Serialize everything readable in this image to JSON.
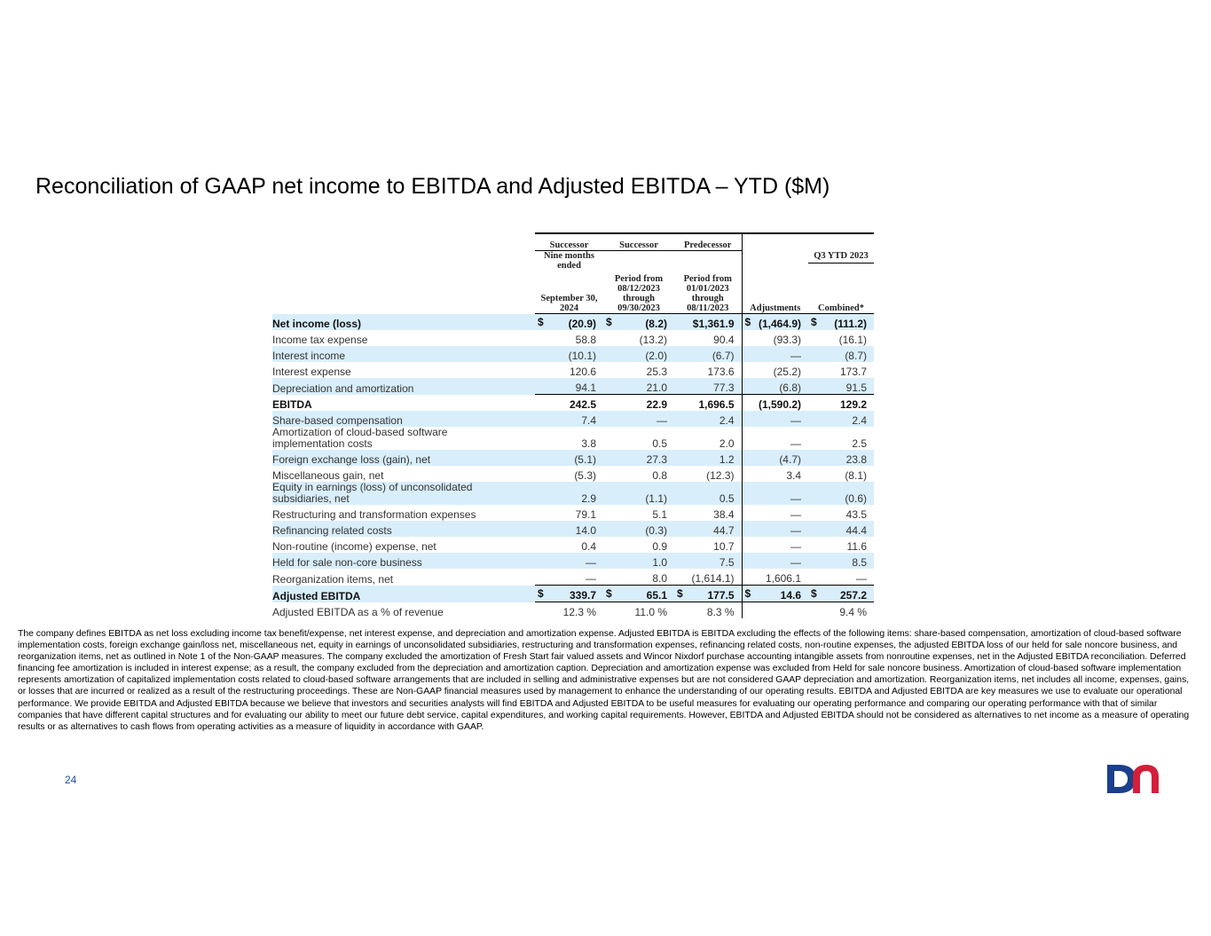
{
  "title": "Reconciliation of GAAP net income to EBITDA and Adjusted EBITDA – YTD ($M)",
  "table": {
    "groups": [
      "Successor",
      "Successor",
      "Predecessor"
    ],
    "columns": [
      [
        "Nine months ended",
        "September 30, 2024"
      ],
      [
        "Period from 08/12/2023 through 09/30/2023"
      ],
      [
        "Period from 01/01/2023 through 08/11/2023"
      ],
      [
        "Adjustments"
      ],
      [
        "Q3 YTD 2023",
        "Combined*"
      ]
    ],
    "rows": [
      {
        "label": "Net income (loss)",
        "bold": true,
        "shaded": true,
        "dollars": [
          "$",
          "$",
          null,
          "$",
          "$"
        ],
        "values": [
          "(20.9)",
          "(8.2)",
          "$1,361.9",
          "(1,464.9)",
          "(111.2)"
        ]
      },
      {
        "label": "Income tax expense",
        "bold": false,
        "shaded": false,
        "values": [
          "58.8",
          "(13.2)",
          "90.4",
          "(93.3)",
          "(16.1)"
        ]
      },
      {
        "label": "Interest income",
        "bold": false,
        "shaded": true,
        "values": [
          "(10.1)",
          "(2.0)",
          "(6.7)",
          "—",
          "(8.7)"
        ]
      },
      {
        "label": "Interest expense",
        "bold": false,
        "shaded": false,
        "values": [
          "120.6",
          "25.3",
          "173.6",
          "(25.2)",
          "173.7"
        ]
      },
      {
        "label": "Depreciation and amortization",
        "bold": false,
        "shaded": true,
        "values": [
          "94.1",
          "21.0",
          "77.3",
          "(6.8)",
          "91.5"
        ]
      },
      {
        "label": "EBITDA",
        "bold": true,
        "shaded": false,
        "values": [
          "242.5",
          "22.9",
          "1,696.5",
          "(1,590.2)",
          "129.2"
        ]
      },
      {
        "label": "Share-based compensation",
        "bold": false,
        "shaded": true,
        "values": [
          "7.4",
          "—",
          "2.4",
          "—",
          "2.4"
        ]
      },
      {
        "label": "Amortization of cloud-based software implementation costs",
        "bold": false,
        "shaded": false,
        "values": [
          "3.8",
          "0.5",
          "2.0",
          "—",
          "2.5"
        ]
      },
      {
        "label": "Foreign exchange loss (gain), net",
        "bold": false,
        "shaded": true,
        "values": [
          "(5.1)",
          "27.3",
          "1.2",
          "(4.7)",
          "23.8"
        ]
      },
      {
        "label": "Miscellaneous gain, net",
        "bold": false,
        "shaded": false,
        "values": [
          "(5.3)",
          "0.8",
          "(12.3)",
          "3.4",
          "(8.1)"
        ]
      },
      {
        "label": "Equity in earnings (loss) of unconsolidated subsidiaries, net",
        "bold": false,
        "shaded": true,
        "values": [
          "2.9",
          "(1.1)",
          "0.5",
          "—",
          "(0.6)"
        ]
      },
      {
        "label": "Restructuring and transformation expenses",
        "bold": false,
        "shaded": false,
        "values": [
          "79.1",
          "5.1",
          "38.4",
          "—",
          "43.5"
        ]
      },
      {
        "label": "Refinancing related costs",
        "bold": false,
        "shaded": true,
        "values": [
          "14.0",
          "(0.3)",
          "44.7",
          "—",
          "44.4"
        ]
      },
      {
        "label": "Non-routine (income) expense, net",
        "bold": false,
        "shaded": false,
        "values": [
          "0.4",
          "0.9",
          "10.7",
          "—",
          "11.6"
        ]
      },
      {
        "label": "Held for sale non-core business",
        "bold": false,
        "shaded": true,
        "values": [
          "—",
          "1.0",
          "7.5",
          "—",
          "8.5"
        ]
      },
      {
        "label": "Reorganization items, net",
        "bold": false,
        "shaded": false,
        "values": [
          "—",
          "8.0",
          "(1,614.1)",
          "1,606.1",
          "—"
        ]
      },
      {
        "label": "Adjusted EBITDA",
        "bold": true,
        "shaded": true,
        "dollars": [
          "$",
          "$",
          "$",
          "$",
          "$"
        ],
        "values": [
          "339.7",
          "65.1",
          "177.5",
          "14.6",
          "257.2"
        ]
      },
      {
        "label": "Adjusted EBITDA as a % of revenue",
        "bold": false,
        "shaded": false,
        "values": [
          "12.3 %",
          "11.0 %",
          "8.3 %",
          "",
          "9.4 %"
        ]
      }
    ]
  },
  "footnote": "The company defines EBITDA as net loss excluding income tax benefit/expense, net interest expense, and depreciation and amortization expense. Adjusted EBITDA is EBITDA excluding the effects of the following items: share-based compensation, amortization of cloud-based software implementation costs, foreign exchange gain/loss net, miscellaneous net, equity in earnings of unconsolidated subsidiaries, restructuring and transformation expenses, refinancing related costs, non-routine expenses, the adjusted EBITDA loss of our held for sale noncore business, and reorganization items, net as outlined in Note 1 of the Non-GAAP measures. The company excluded the amortization of Fresh Start fair valued assets and Wincor Nixdorf purchase accounting intangible assets from nonroutine expenses, net in the Adjusted EBITDA reconciliation. Deferred financing fee amortization is included in interest expense; as a result, the company excluded from the depreciation and amortization caption. Depreciation and amortization expense was excluded from Held for sale noncore business. Amortization of cloud-based software implementation represents amortization of capitalized implementation costs related to cloud-based software arrangements that are included in selling and administrative expenses but are not considered GAAP depreciation and amortization. Reorganization items, net includes all income, expenses, gains, or losses that are incurred or realized as a result of the restructuring proceedings. These are Non-GAAP financial measures used by management to enhance the understanding of our operating results. EBITDA and Adjusted EBITDA are key measures we use to evaluate our operational performance. We provide EBITDA and Adjusted EBITDA because we believe that investors and securities analysts will find EBITDA and Adjusted EBITDA to be useful measures for evaluating our operating performance and comparing our operating performance with that of similar companies that have different capital structures and for evaluating our ability to meet our future debt service, capital expenditures, and working capital requirements. However, EBITDA and Adjusted EBITDA should not be considered as alternatives to net income as a measure of operating results or as alternatives to cash flows from operating activities as a measure of liquidity in accordance with GAAP.",
  "page_number": "24"
}
